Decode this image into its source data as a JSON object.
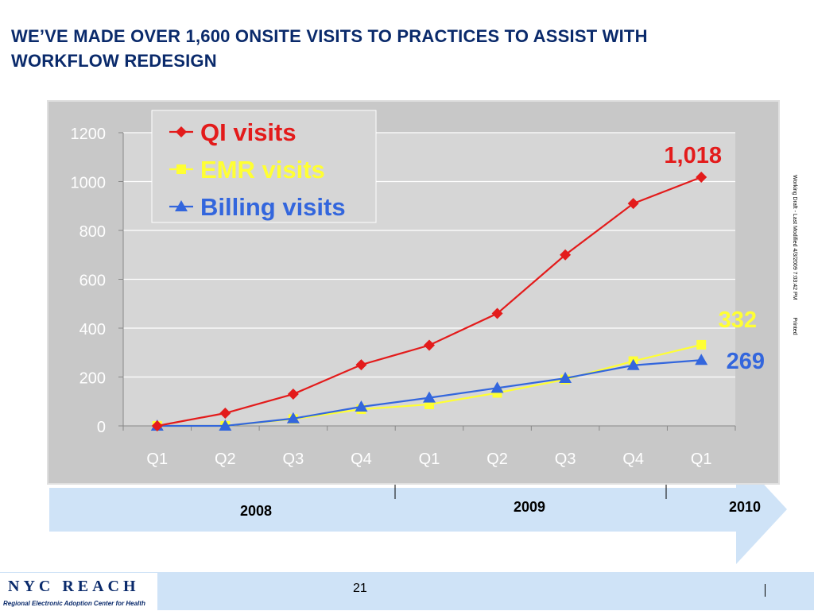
{
  "title": "WE’VE MADE OVER 1,600 ONSITE VISITS TO PRACTICES TO ASSIST WITH WORKFLOW REDESIGN",
  "side_note": {
    "draft": "Working Draft - Last Modified 4/3/2009 7:03:42 PM",
    "printed": "Printed"
  },
  "timeline": {
    "years": [
      "2008",
      "2009",
      "2010"
    ]
  },
  "footer": {
    "logo_title": "NYC REACH",
    "logo_subtitle": "Regional Electronic Adoption Center for Health",
    "page_number": "21"
  },
  "colors": {
    "qi": "#e31b1b",
    "emr": "#ffff33",
    "billing": "#3366dd",
    "plot_bg": "#c8c8c8",
    "arrow": "#cfe3f7",
    "title": "#0a2a6b"
  },
  "chart_data": {
    "type": "line",
    "categories": [
      "Q1",
      "Q2",
      "Q3",
      "Q4",
      "Q1",
      "Q2",
      "Q3",
      "Q4",
      "Q1"
    ],
    "ylim": [
      0,
      1200
    ],
    "yticks": [
      "0",
      "200",
      "400",
      "600",
      "800",
      "1000",
      "1200"
    ],
    "grid": true,
    "legend_position": "top-left",
    "series": [
      {
        "name": "QI visits",
        "marker": "diamond",
        "color": "#e31b1b",
        "values": [
          0,
          52,
          130,
          250,
          330,
          460,
          700,
          910,
          1018
        ],
        "end_label": "1,018"
      },
      {
        "name": "EMR visits",
        "marker": "square",
        "color": "#ffff33",
        "values": [
          0,
          0,
          28,
          68,
          88,
          135,
          190,
          265,
          332
        ],
        "end_label": "332"
      },
      {
        "name": "Billing visits",
        "marker": "triangle",
        "color": "#3366dd",
        "values": [
          0,
          0,
          30,
          78,
          115,
          155,
          195,
          248,
          269
        ],
        "end_label": "269"
      }
    ]
  }
}
